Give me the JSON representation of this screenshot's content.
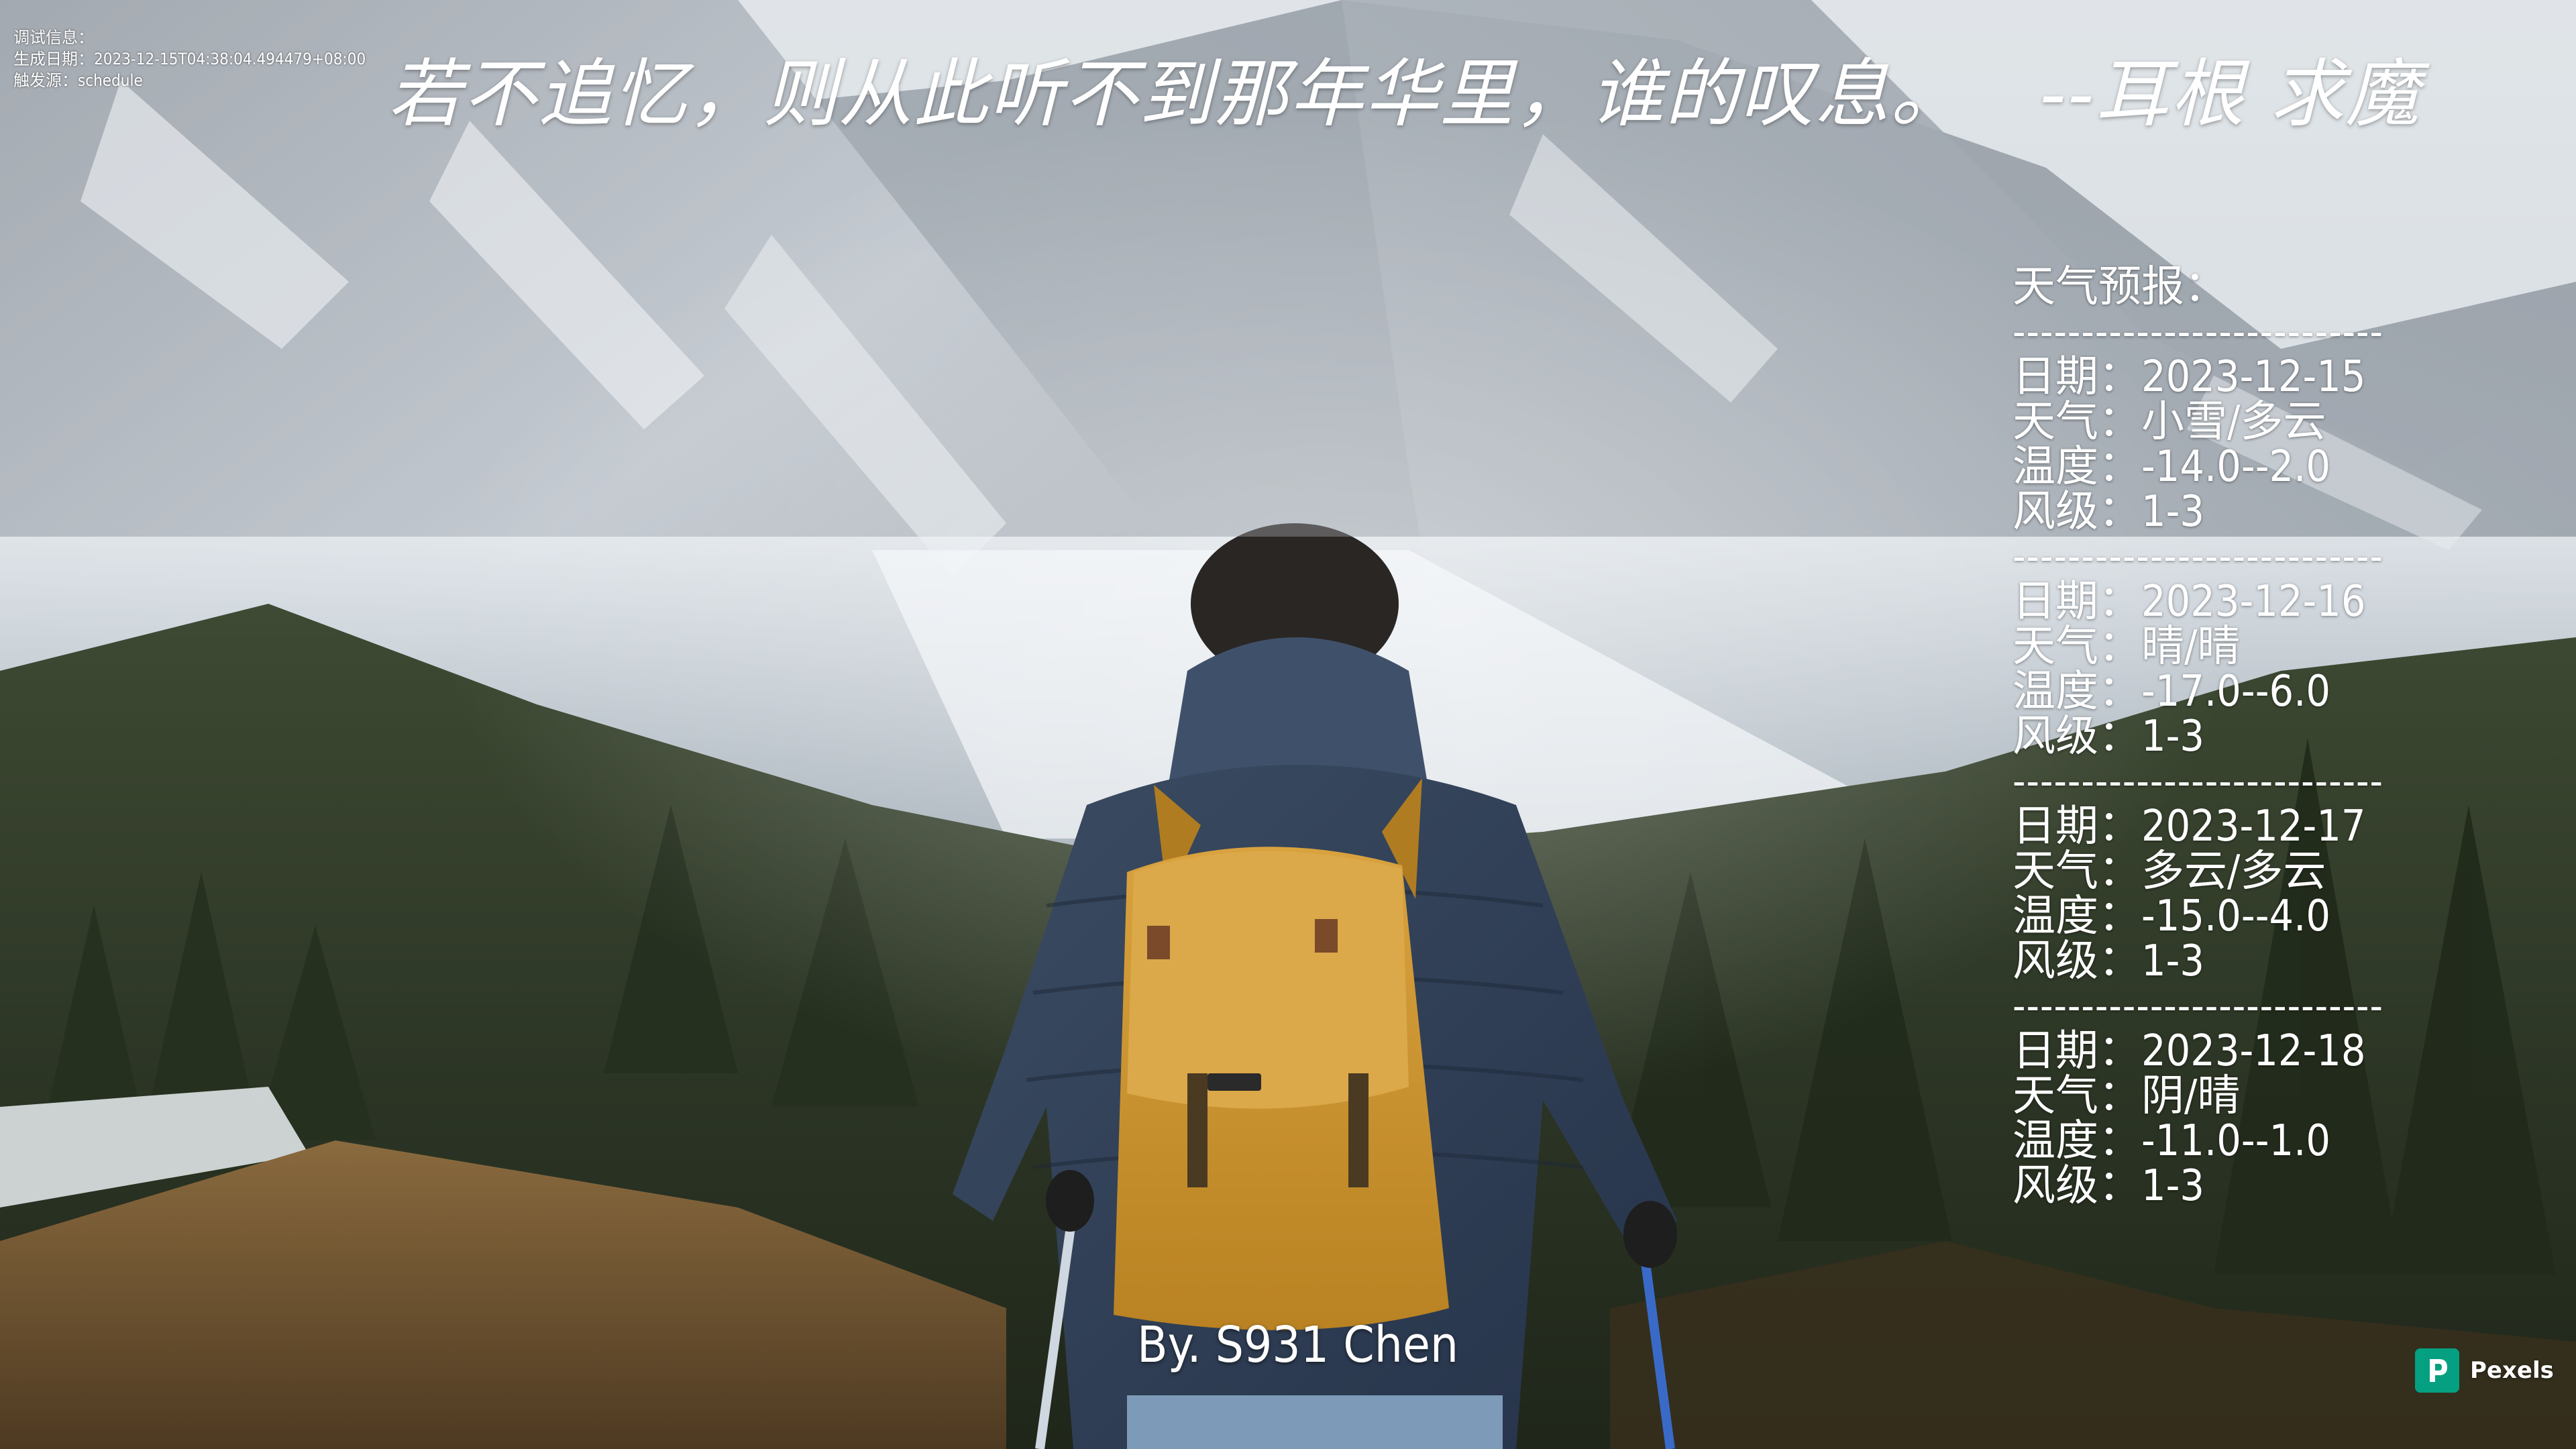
{
  "debug": {
    "line1": "调试信息：",
    "line2": "生成日期：2023-12-15T04:38:04.494479+08:00",
    "line3": "触发源：schedule"
  },
  "quote": {
    "text": "若不追忆，则从此听不到那年华里，谁的叹息。",
    "author": "--耳根 求魔"
  },
  "weather": {
    "title": "天气预报：",
    "divider": "---------------------------",
    "days": [
      {
        "date": "日期：2023-12-15",
        "weather": "天气：小雪/多云",
        "temp": "温度：-14.0--2.0",
        "wind": "风级：1-3"
      },
      {
        "date": "日期：2023-12-16",
        "weather": "天气：晴/晴",
        "temp": "温度：-17.0--6.0",
        "wind": "风级：1-3"
      },
      {
        "date": "日期：2023-12-17",
        "weather": "天气：多云/多云",
        "temp": "温度：-15.0--4.0",
        "wind": "风级：1-3"
      },
      {
        "date": "日期：2023-12-18",
        "weather": "天气：阴/晴",
        "temp": "温度：-11.0--1.0",
        "wind": "风级：1-3"
      }
    ]
  },
  "signature": "By. S931 Chen",
  "pexels": {
    "label": "Pexels",
    "icon": "pexels-logo-icon",
    "color": "#05a081"
  },
  "colors": {
    "text": "#ffffff",
    "sky": "#cfd6dc",
    "forest": "#2f3a26"
  }
}
